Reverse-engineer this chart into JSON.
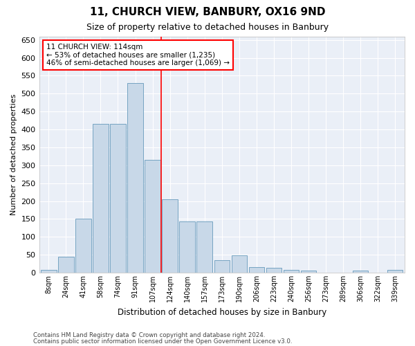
{
  "title": "11, CHURCH VIEW, BANBURY, OX16 9ND",
  "subtitle": "Size of property relative to detached houses in Banbury",
  "xlabel": "Distribution of detached houses by size in Banbury",
  "ylabel": "Number of detached properties",
  "bar_color": "#c8d8e8",
  "bar_edge_color": "#6699bb",
  "categories": [
    "8sqm",
    "24sqm",
    "41sqm",
    "58sqm",
    "74sqm",
    "91sqm",
    "107sqm",
    "124sqm",
    "140sqm",
    "157sqm",
    "173sqm",
    "190sqm",
    "206sqm",
    "223sqm",
    "240sqm",
    "256sqm",
    "273sqm",
    "289sqm",
    "306sqm",
    "322sqm",
    "339sqm"
  ],
  "values": [
    8,
    45,
    150,
    415,
    415,
    530,
    315,
    205,
    143,
    143,
    35,
    48,
    15,
    13,
    8,
    5,
    0,
    0,
    5,
    0,
    7
  ],
  "annotation_text": "11 CHURCH VIEW: 114sqm\n← 53% of detached houses are smaller (1,235)\n46% of semi-detached houses are larger (1,069) →",
  "annotation_box_color": "white",
  "annotation_box_edge": "red",
  "ylim": [
    0,
    660
  ],
  "yticks": [
    0,
    50,
    100,
    150,
    200,
    250,
    300,
    350,
    400,
    450,
    500,
    550,
    600,
    650
  ],
  "footnote1": "Contains HM Land Registry data © Crown copyright and database right 2024.",
  "footnote2": "Contains public sector information licensed under the Open Government Licence v3.0.",
  "bg_color": "#eaeff7",
  "grid_color": "white",
  "fig_bg": "white",
  "vline_pos": 6.5
}
